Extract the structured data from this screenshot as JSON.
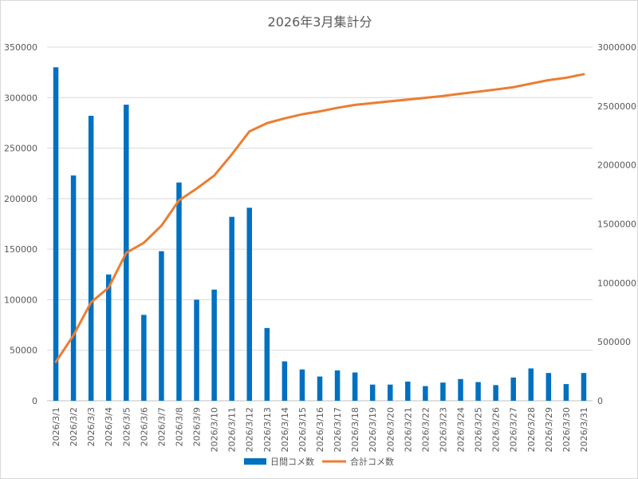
{
  "chart_data": {
    "type": "bar",
    "title": "2026年3月集計分",
    "categories": [
      "2026/3/1",
      "2026/3/2",
      "2026/3/3",
      "2026/3/4",
      "2026/3/5",
      "2026/3/6",
      "2026/3/7",
      "2026/3/8",
      "2026/3/9",
      "2026/3/10",
      "2026/3/11",
      "2026/3/12",
      "2026/3/13",
      "2026/3/14",
      "2026/3/15",
      "2026/3/16",
      "2026/3/17",
      "2026/3/18",
      "2026/3/19",
      "2026/3/20",
      "2026/3/21",
      "2026/3/22",
      "2026/3/23",
      "2026/3/24",
      "2026/3/25",
      "2026/3/26",
      "2026/3/27",
      "2026/3/28",
      "2026/3/29",
      "2026/3/30",
      "2026/3/31"
    ],
    "series": [
      {
        "name": "日間コメ数",
        "type": "bar",
        "axis": "left",
        "color": "#0070C0",
        "values": [
          330000,
          223000,
          282000,
          125000,
          293000,
          85000,
          148000,
          216000,
          100000,
          110000,
          182000,
          191000,
          72000,
          39000,
          31000,
          24000,
          30000,
          28000,
          16000,
          16000,
          19000,
          14500,
          18000,
          21500,
          18500,
          15500,
          23000,
          32000,
          27500,
          16500,
          27500
        ]
      },
      {
        "name": "合計コメ数",
        "type": "line",
        "axis": "right",
        "color": "#ED7D31",
        "values": [
          330000,
          555000,
          835000,
          960000,
          1255000,
          1340000,
          1485000,
          1700000,
          1800000,
          1910000,
          2090000,
          2285000,
          2355000,
          2395000,
          2430000,
          2455000,
          2485000,
          2510000,
          2525000,
          2540000,
          2555000,
          2570000,
          2585000,
          2605000,
          2622000,
          2640000,
          2660000,
          2690000,
          2720000,
          2740000,
          2770000
        ]
      }
    ],
    "y_left": {
      "min": 0,
      "max": 350000,
      "step": 50000
    },
    "y_right": {
      "min": 0,
      "max": 3000000,
      "step": 500000
    },
    "grid": true,
    "legend_position": "bottom"
  }
}
